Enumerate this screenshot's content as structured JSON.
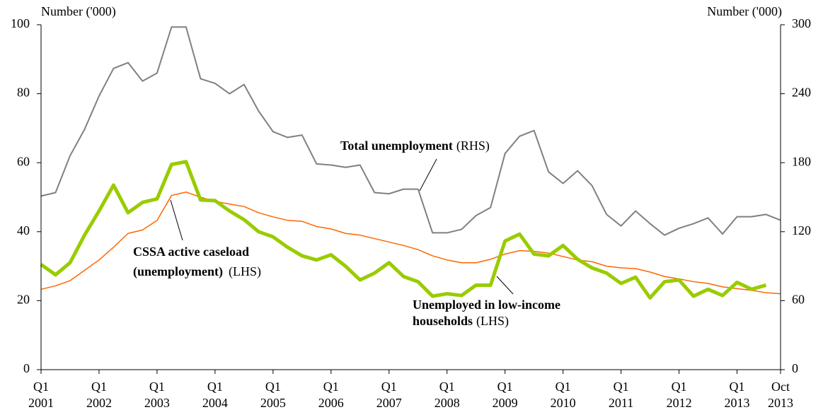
{
  "chart_data": {
    "type": "line",
    "y_label": "Number ('000)",
    "y2_label": "Number ('000)",
    "categories": [
      "Q1 2001",
      null,
      null,
      null,
      "Q1 2002",
      null,
      null,
      null,
      "Q1 2003",
      null,
      null,
      null,
      "Q1 2004",
      null,
      null,
      null,
      "Q1 2005",
      null,
      null,
      null,
      "Q1 2006",
      null,
      null,
      null,
      "Q1 2007",
      null,
      null,
      null,
      "Q1 2008",
      null,
      null,
      null,
      "Q1 2009",
      null,
      null,
      null,
      "Q1 2010",
      null,
      null,
      null,
      "Q1 2011",
      null,
      null,
      null,
      "Q1 2012",
      null,
      null,
      null,
      "Q1 2013",
      null,
      null,
      "Oct 2013"
    ],
    "series": [
      {
        "name": "Total unemployment",
        "color": "#808080",
        "width": 2,
        "axis": "y2",
        "values": [
          151,
          154,
          186,
          209,
          238,
          262,
          267,
          251,
          258,
          298,
          298,
          253,
          249,
          240,
          248,
          225,
          207,
          202,
          204,
          179,
          178,
          176,
          178,
          154,
          153,
          157,
          157,
          119,
          119,
          122,
          134,
          141,
          188,
          203,
          208,
          172,
          162,
          173,
          160,
          135,
          125,
          138,
          127,
          117,
          123,
          127,
          132,
          118,
          133,
          133,
          135,
          130
        ]
      },
      {
        "name": "Unemployed in low-income households",
        "color": "#99cc00",
        "width": 5,
        "values": [
          30.5,
          27.5,
          31,
          39,
          46,
          53.5,
          45.5,
          48.5,
          49.5,
          59.5,
          60.3,
          49.2,
          49,
          46,
          43.5,
          40,
          38.5,
          35.5,
          33,
          31.8,
          33.3,
          30,
          26,
          28,
          31,
          27,
          25.5,
          21.3,
          22,
          21.5,
          24.5,
          24.5,
          37.3,
          39.3,
          33.5,
          33,
          36,
          32,
          29.5,
          28,
          25,
          26.8,
          20.8,
          25.5,
          26,
          21.3,
          23.3,
          21.5,
          25.3,
          23.3,
          24.5,
          null
        ]
      },
      {
        "name": "CSSA active caseload (unemployment)",
        "color": "#ff6600",
        "width": 1.5,
        "values": [
          23.3,
          24.3,
          25.8,
          28.8,
          31.8,
          35.5,
          39.5,
          40.5,
          43.3,
          50.5,
          51.5,
          50,
          48.8,
          48,
          47.3,
          45.5,
          44.3,
          43.3,
          43,
          41.5,
          40.8,
          39.5,
          39,
          38,
          37,
          36,
          34.8,
          33,
          31.8,
          31,
          31,
          32,
          33.5,
          34.5,
          34.3,
          33.8,
          32.8,
          31.8,
          31.3,
          30,
          29.5,
          29.3,
          28.3,
          27,
          26.3,
          25.5,
          25,
          24,
          23.5,
          23,
          22.3,
          22
        ]
      }
    ],
    "annotations": [
      {
        "lines": [
          [
            {
              "text": "Total unemployment",
              "bold": true
            },
            {
              "text": "(RHS)",
              "bold": false
            }
          ]
        ]
      },
      {
        "lines": [
          [
            {
              "text": "CSSA active caseload",
              "bold": true
            }
          ],
          [
            {
              "text": "(unemployment)",
              "bold": true
            },
            {
              "text": "(LHS)",
              "bold": false
            }
          ]
        ]
      },
      {
        "lines": [
          [
            {
              "text": "Unemployed in low-income",
              "bold": true
            }
          ],
          [
            {
              "text": "households",
              "bold": true
            },
            {
              "text": "(LHS)",
              "bold": false
            }
          ]
        ]
      }
    ],
    "ylim": [
      0,
      100
    ],
    "yticks": [
      0,
      20,
      40,
      60,
      80,
      100
    ],
    "y2lim": [
      0,
      300
    ],
    "y2ticks": [
      0,
      60,
      120,
      180,
      240,
      300
    ],
    "grid": false
  }
}
